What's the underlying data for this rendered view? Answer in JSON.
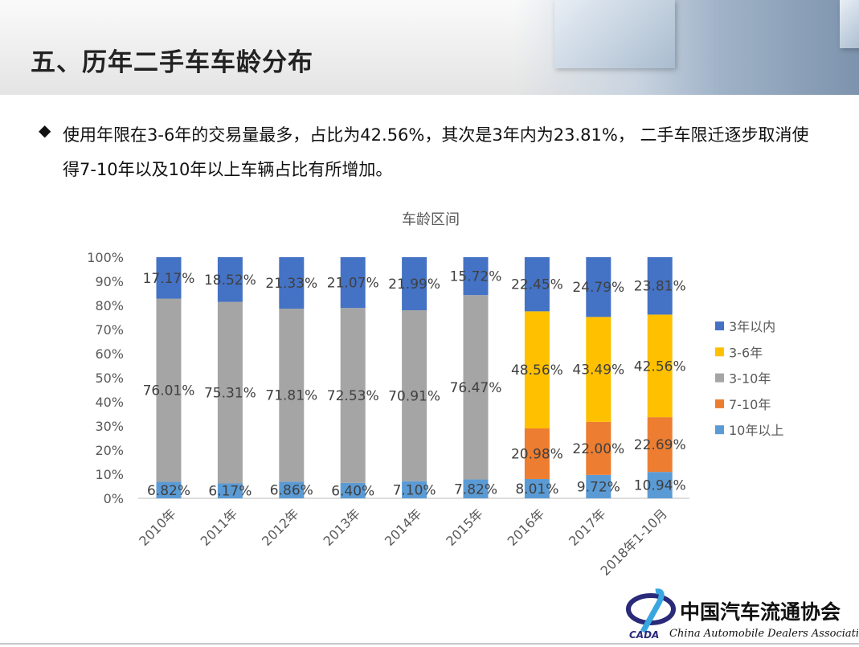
{
  "slide": {
    "title": "五、历年二手车车龄分布",
    "bullet_icon": "diamond-icon",
    "description": "使用年限在3-6年的交易量最多，占比为42.56%，其次是3年内为23.81%， 二手车限迁逐步取消使得7-10年以及10年以上车辆占比有所增加。"
  },
  "logo": {
    "cn": "中国汽车流通协会",
    "en": "China Automobile Dealers Association",
    "abbr": "CADA"
  },
  "chart_data": {
    "type": "bar",
    "stacked": true,
    "percent": true,
    "title": "车龄区间",
    "xlabel": "",
    "ylabel": "",
    "ylim": [
      0,
      100
    ],
    "yticks": [
      "0%",
      "10%",
      "20%",
      "30%",
      "40%",
      "50%",
      "60%",
      "70%",
      "80%",
      "90%",
      "100%"
    ],
    "categories": [
      "2010年",
      "2011年",
      "2012年",
      "2013年",
      "2014年",
      "2015年",
      "2016年",
      "2017年",
      "2018年1-10月"
    ],
    "legend_position": "right",
    "series": [
      {
        "name": "10年以上",
        "color": "#5B9BD5",
        "values": [
          6.82,
          6.17,
          6.86,
          6.4,
          7.1,
          7.82,
          8.01,
          9.72,
          10.94
        ]
      },
      {
        "name": "7-10年",
        "color": "#ED7D31",
        "values": [
          null,
          null,
          null,
          null,
          null,
          null,
          20.98,
          22.0,
          22.69
        ]
      },
      {
        "name": "3-10年",
        "color": "#A5A5A5",
        "values": [
          76.01,
          75.31,
          71.81,
          72.53,
          70.91,
          76.47,
          null,
          null,
          null
        ]
      },
      {
        "name": "3-6年",
        "color": "#FFC000",
        "values": [
          null,
          null,
          null,
          null,
          null,
          null,
          48.56,
          43.49,
          42.56
        ]
      },
      {
        "name": "3年以内",
        "color": "#4472C4",
        "values": [
          17.17,
          18.52,
          21.33,
          21.07,
          21.99,
          15.72,
          22.45,
          24.79,
          23.81
        ]
      }
    ],
    "legend_order": [
      "3年以内",
      "3-6年",
      "3-10年",
      "7-10年",
      "10年以上"
    ]
  }
}
